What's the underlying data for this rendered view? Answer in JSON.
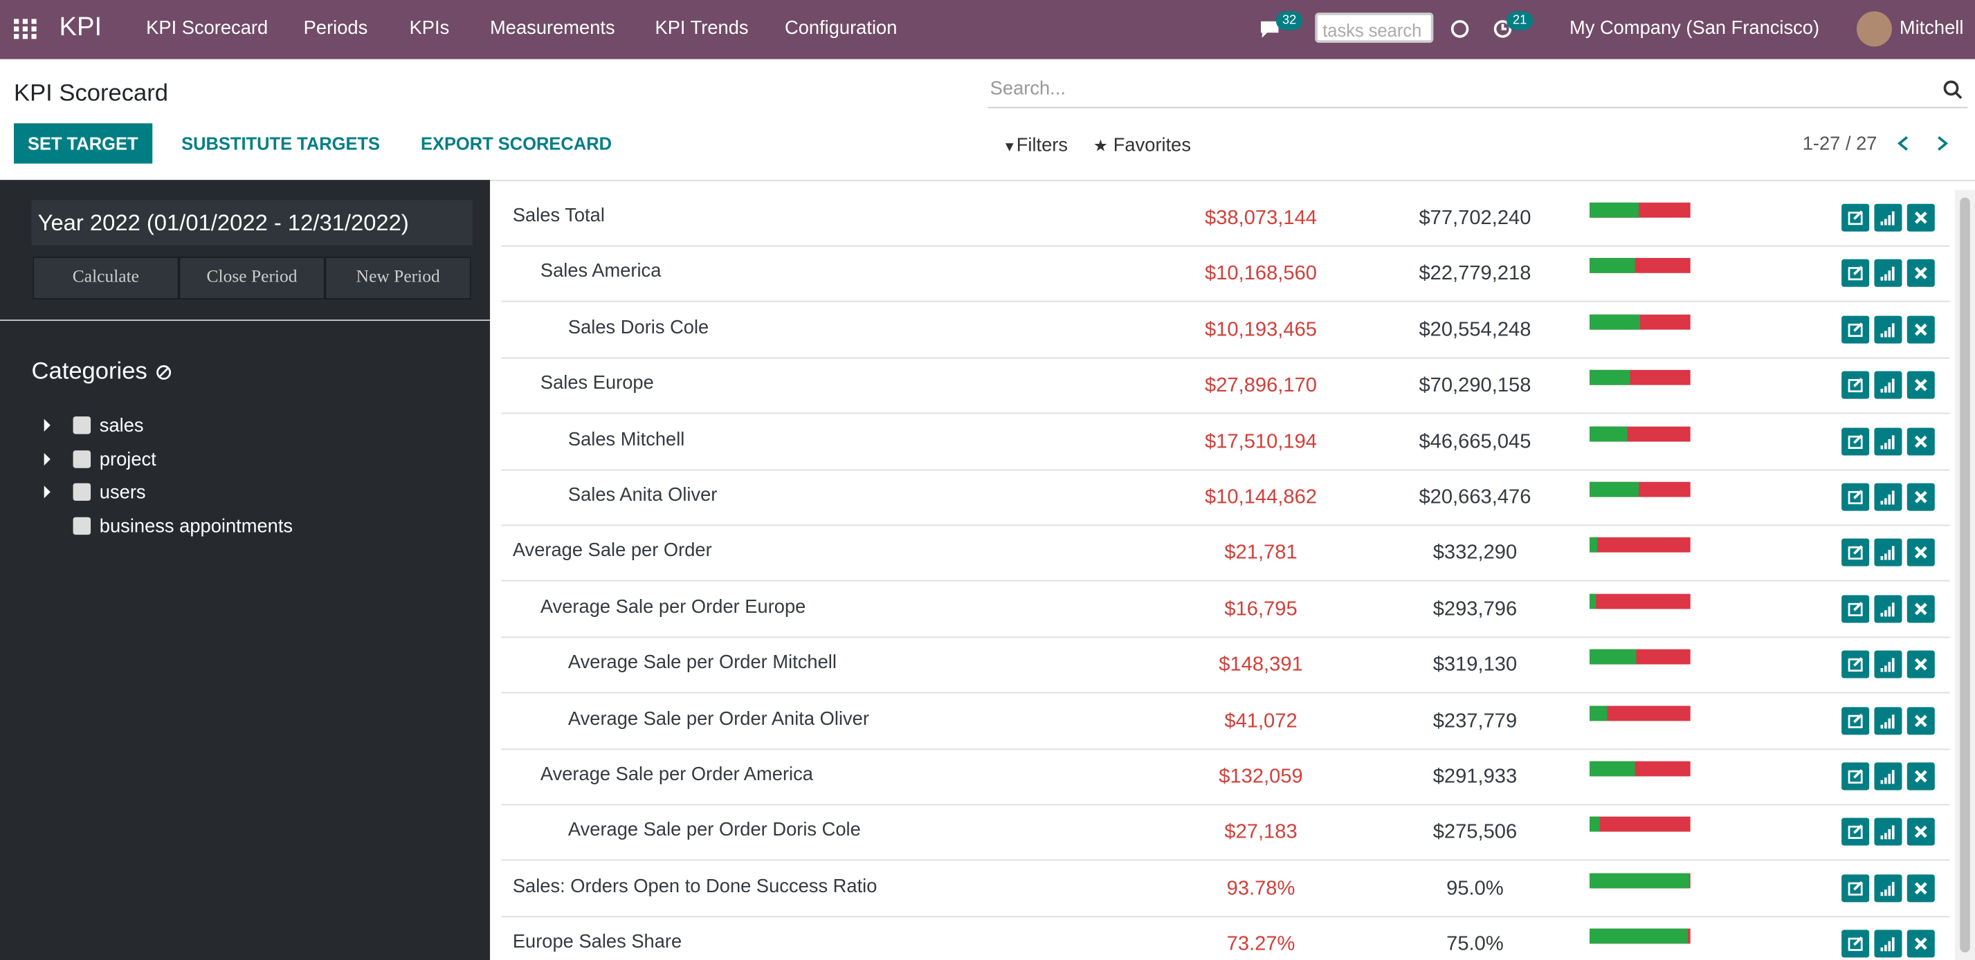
{
  "navbar": {
    "app": "KPI",
    "menu": [
      "KPI Scorecard",
      "Periods",
      "KPIs",
      "Measurements",
      "KPI Trends",
      "Configuration"
    ],
    "messages_count": "32",
    "search_placeholder": "tasks search",
    "activity_count": "21",
    "company": "My Company (San Francisco)",
    "user": "Mitchell"
  },
  "control_panel": {
    "title": "KPI Scorecard",
    "buttons": [
      "SET TARGET",
      "SUBSTITUTE TARGETS",
      "EXPORT SCORECARD"
    ],
    "search_placeholder": "Search...",
    "filters": "Filters",
    "favorites": "Favorites",
    "pager": "1-27 / 27"
  },
  "sidebar": {
    "period": "Year 2022 (01/01/2022 - 12/31/2022)",
    "period_buttons": [
      "Calculate",
      "Close Period",
      "New Period"
    ],
    "categories_title": "Categories",
    "categories": [
      "sales",
      "project",
      "users",
      "business appointments"
    ]
  },
  "table": {
    "rows": [
      {
        "name": "Sales Total",
        "level": 0,
        "actual": "$38,073,144",
        "target": "$77,702,240",
        "progress": 49
      },
      {
        "name": "Sales America",
        "level": 1,
        "actual": "$10,168,560",
        "target": "$22,779,218",
        "progress": 45
      },
      {
        "name": "Sales Doris Cole",
        "level": 2,
        "actual": "$10,193,465",
        "target": "$20,554,248",
        "progress": 50
      },
      {
        "name": "Sales Europe",
        "level": 1,
        "actual": "$27,896,170",
        "target": "$70,290,158",
        "progress": 40
      },
      {
        "name": "Sales Mitchell",
        "level": 2,
        "actual": "$17,510,194",
        "target": "$46,665,045",
        "progress": 38
      },
      {
        "name": "Sales Anita Oliver",
        "level": 2,
        "actual": "$10,144,862",
        "target": "$20,663,476",
        "progress": 49
      },
      {
        "name": "Average Sale per Order",
        "level": 0,
        "actual": "$21,781",
        "target": "$332,290",
        "progress": 7
      },
      {
        "name": "Average Sale per Order Europe",
        "level": 1,
        "actual": "$16,795",
        "target": "$293,796",
        "progress": 6
      },
      {
        "name": "Average Sale per Order Mitchell",
        "level": 2,
        "actual": "$148,391",
        "target": "$319,130",
        "progress": 46
      },
      {
        "name": "Average Sale per Order Anita Oliver",
        "level": 2,
        "actual": "$41,072",
        "target": "$237,779",
        "progress": 17
      },
      {
        "name": "Average Sale per Order America",
        "level": 1,
        "actual": "$132,059",
        "target": "$291,933",
        "progress": 45
      },
      {
        "name": "Average Sale per Order Doris Cole",
        "level": 2,
        "actual": "$27,183",
        "target": "$275,506",
        "progress": 10
      },
      {
        "name": "Sales: Orders Open to Done Success Ratio",
        "level": 0,
        "actual": "93.78%",
        "target": "95.0%",
        "progress": 99
      },
      {
        "name": "Europe Sales Share",
        "level": 0,
        "actual": "73.27%",
        "target": "75.0%",
        "progress": 98
      }
    ]
  }
}
